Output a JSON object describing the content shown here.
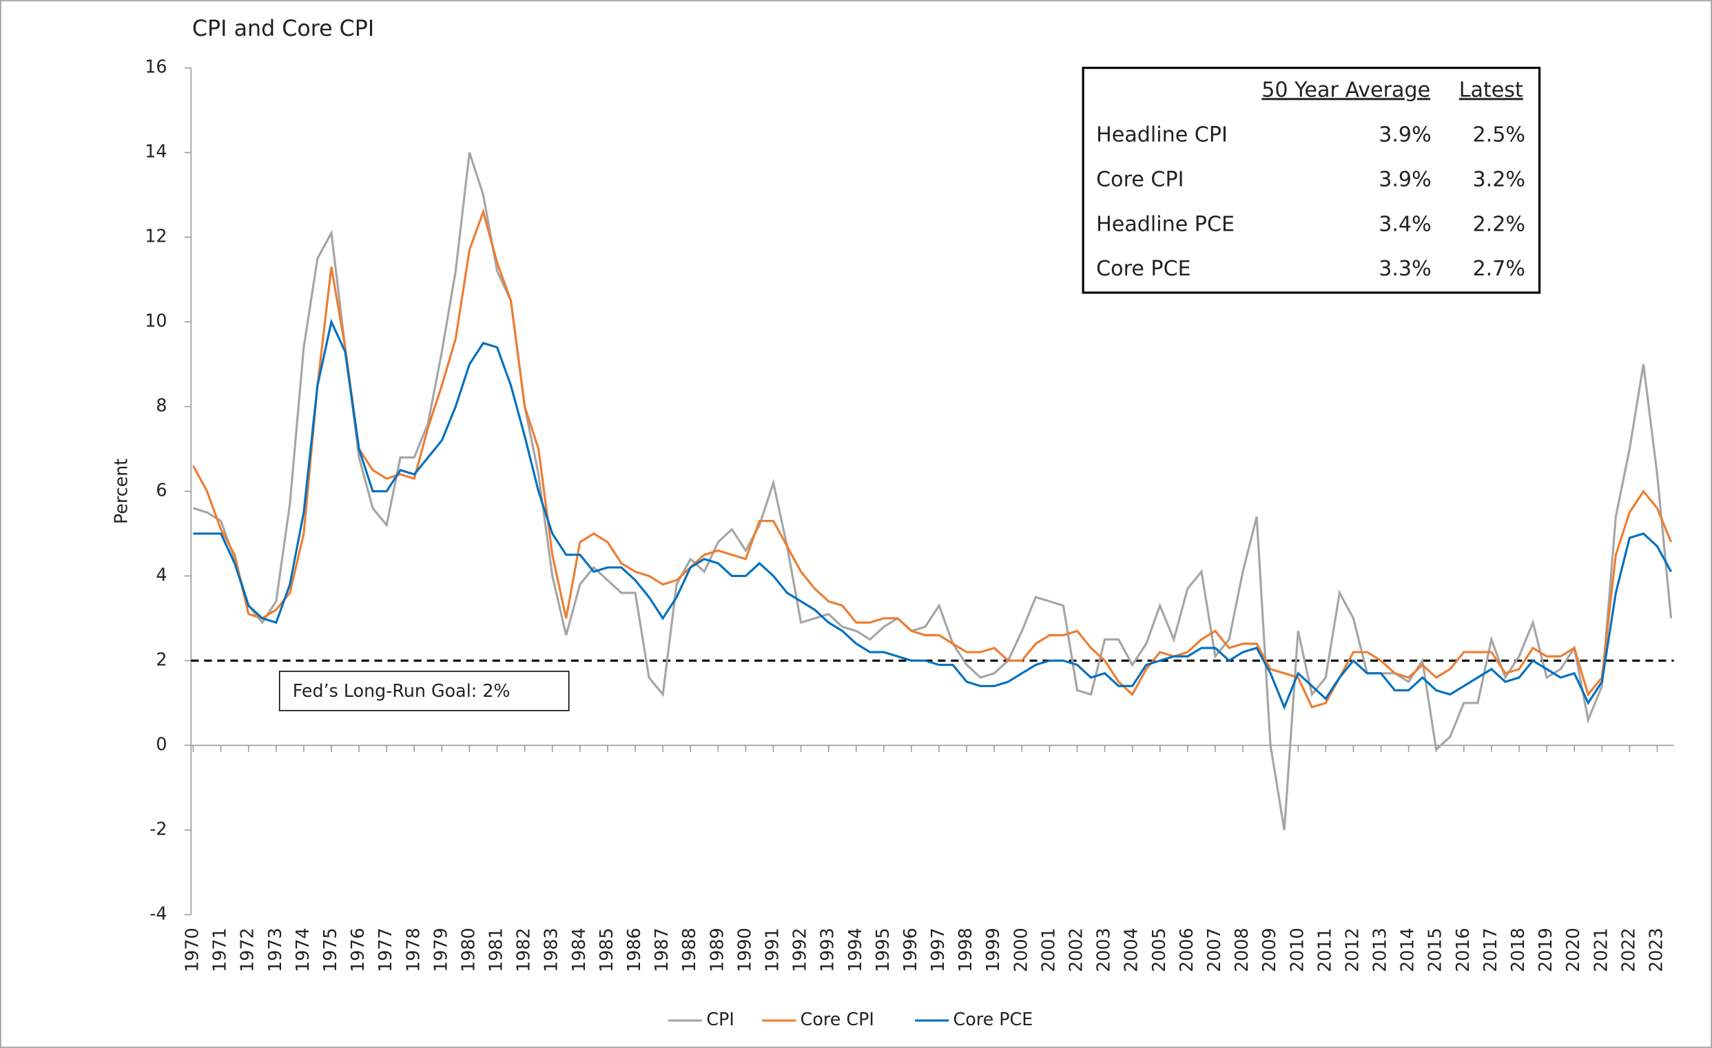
{
  "chart_data": {
    "type": "line",
    "title": "CPI and Core CPI",
    "y_label": "Percent",
    "xlim": [
      1970,
      2023.6
    ],
    "xticks": [
      1970,
      1971,
      1972,
      1973,
      1974,
      1975,
      1976,
      1977,
      1978,
      1979,
      1980,
      1981,
      1982,
      1983,
      1984,
      1985,
      1986,
      1987,
      1988,
      1989,
      1990,
      1991,
      1992,
      1993,
      1994,
      1995,
      1996,
      1997,
      1998,
      1999,
      2000,
      2001,
      2002,
      2003,
      2004,
      2005,
      2006,
      2007,
      2008,
      2009,
      2010,
      2011,
      2012,
      2013,
      2014,
      2015,
      2016,
      2017,
      2018,
      2019,
      2020,
      2021,
      2022,
      2023
    ],
    "ylim": [
      -4,
      16
    ],
    "yticks": [
      -4,
      -2,
      0,
      2,
      4,
      6,
      8,
      10,
      12,
      14,
      16
    ],
    "x": [
      1970,
      1970.5,
      1971,
      1971.5,
      1972,
      1972.5,
      1973,
      1973.5,
      1974,
      1974.5,
      1975,
      1975.5,
      1976,
      1976.5,
      1977,
      1977.5,
      1978,
      1978.5,
      1979,
      1979.5,
      1980,
      1980.5,
      1981,
      1981.5,
      1982,
      1982.5,
      1983,
      1983.5,
      1984,
      1984.5,
      1985,
      1985.5,
      1986,
      1986.5,
      1987,
      1987.5,
      1988,
      1988.5,
      1989,
      1989.5,
      1990,
      1990.5,
      1991,
      1991.5,
      1992,
      1992.5,
      1993,
      1993.5,
      1994,
      1994.5,
      1995,
      1995.5,
      1996,
      1996.5,
      1997,
      1997.5,
      1998,
      1998.5,
      1999,
      1999.5,
      2000,
      2000.5,
      2001,
      2001.5,
      2002,
      2002.5,
      2003,
      2003.5,
      2004,
      2004.5,
      2005,
      2005.5,
      2006,
      2006.5,
      2007,
      2007.5,
      2008,
      2008.5,
      2009,
      2009.5,
      2010,
      2010.5,
      2011,
      2011.5,
      2012,
      2012.5,
      2013,
      2013.5,
      2014,
      2014.5,
      2015,
      2015.5,
      2016,
      2016.5,
      2017,
      2017.5,
      2018,
      2018.5,
      2019,
      2019.5,
      2020,
      2020.5,
      2021,
      2021.5,
      2022,
      2022.5,
      2023,
      2023.5
    ],
    "series": [
      {
        "name": "CPI",
        "color": "#a5a5a5",
        "values": [
          5.6,
          5.5,
          5.3,
          4.4,
          3.3,
          2.9,
          3.4,
          5.7,
          9.4,
          11.5,
          12.1,
          9.4,
          6.8,
          5.6,
          5.2,
          6.8,
          6.8,
          7.6,
          9.3,
          11.2,
          14.0,
          13.0,
          11.2,
          10.5,
          8.0,
          6.4,
          4.0,
          2.6,
          3.8,
          4.2,
          3.9,
          3.6,
          3.6,
          1.6,
          1.2,
          3.8,
          4.4,
          4.1,
          4.8,
          5.1,
          4.6,
          5.2,
          6.2,
          4.7,
          2.9,
          3.0,
          3.1,
          2.8,
          2.7,
          2.5,
          2.8,
          3.0,
          2.7,
          2.8,
          3.3,
          2.4,
          1.9,
          1.6,
          1.7,
          2.0,
          2.7,
          3.5,
          3.4,
          3.3,
          1.3,
          1.2,
          2.5,
          2.5,
          1.9,
          2.4,
          3.3,
          2.5,
          3.7,
          4.1,
          2.1,
          2.5,
          4.1,
          5.4,
          0.0,
          -2.0,
          2.7,
          1.2,
          1.6,
          3.6,
          3.0,
          1.7,
          1.7,
          1.7,
          1.5,
          2.0,
          -0.1,
          0.2,
          1.0,
          1.0,
          2.5,
          1.6,
          2.1,
          2.9,
          1.6,
          1.8,
          2.3,
          0.6,
          1.4,
          5.4,
          7.0,
          9.0,
          6.4,
          3.0
        ]
      },
      {
        "name": "Core CPI",
        "color": "#ed7d31",
        "values": [
          6.6,
          6.0,
          5.1,
          4.5,
          3.1,
          3.0,
          3.2,
          3.6,
          5.0,
          8.5,
          11.3,
          9.4,
          7.0,
          6.5,
          6.3,
          6.4,
          6.3,
          7.5,
          8.5,
          9.6,
          11.7,
          12.6,
          11.4,
          10.5,
          8.0,
          7.0,
          4.5,
          3.0,
          4.8,
          5.0,
          4.8,
          4.3,
          4.1,
          4.0,
          3.8,
          3.9,
          4.2,
          4.5,
          4.6,
          4.5,
          4.4,
          5.3,
          5.3,
          4.7,
          4.1,
          3.7,
          3.4,
          3.3,
          2.9,
          2.9,
          3.0,
          3.0,
          2.7,
          2.6,
          2.6,
          2.4,
          2.2,
          2.2,
          2.3,
          2.0,
          2.0,
          2.4,
          2.6,
          2.6,
          2.7,
          2.3,
          2.0,
          1.5,
          1.2,
          1.8,
          2.2,
          2.1,
          2.2,
          2.5,
          2.7,
          2.3,
          2.4,
          2.4,
          1.8,
          1.7,
          1.6,
          0.9,
          1.0,
          1.6,
          2.2,
          2.2,
          2.0,
          1.7,
          1.6,
          1.9,
          1.6,
          1.8,
          2.2,
          2.2,
          2.2,
          1.7,
          1.8,
          2.3,
          2.1,
          2.1,
          2.3,
          1.2,
          1.6,
          4.5,
          5.5,
          6.0,
          5.6,
          4.8
        ]
      },
      {
        "name": "Core PCE",
        "color": "#0070c0",
        "values": [
          5.0,
          5.0,
          5.0,
          4.3,
          3.3,
          3.0,
          2.9,
          3.8,
          5.5,
          8.5,
          10.0,
          9.3,
          7.0,
          6.0,
          6.0,
          6.5,
          6.4,
          6.8,
          7.2,
          8.0,
          9.0,
          9.5,
          9.4,
          8.5,
          7.3,
          6.0,
          5.0,
          4.5,
          4.5,
          4.1,
          4.2,
          4.2,
          3.9,
          3.5,
          3.0,
          3.5,
          4.2,
          4.4,
          4.3,
          4.0,
          4.0,
          4.3,
          4.0,
          3.6,
          3.4,
          3.2,
          2.9,
          2.7,
          2.4,
          2.2,
          2.2,
          2.1,
          2.0,
          2.0,
          1.9,
          1.9,
          1.5,
          1.4,
          1.4,
          1.5,
          1.7,
          1.9,
          2.0,
          2.0,
          1.9,
          1.6,
          1.7,
          1.4,
          1.4,
          1.9,
          2.0,
          2.1,
          2.1,
          2.3,
          2.3,
          2.0,
          2.2,
          2.3,
          1.7,
          0.9,
          1.7,
          1.4,
          1.1,
          1.6,
          2.0,
          1.7,
          1.7,
          1.3,
          1.3,
          1.6,
          1.3,
          1.2,
          1.4,
          1.6,
          1.8,
          1.5,
          1.6,
          2.0,
          1.8,
          1.6,
          1.7,
          1.0,
          1.5,
          3.6,
          4.9,
          5.0,
          4.7,
          4.1
        ]
      }
    ],
    "goal": {
      "value": 2,
      "label": "Fed’s Long-Run Goal: 2%"
    },
    "table": {
      "header": [
        "50 Year Average",
        "Latest"
      ],
      "rows": [
        [
          "Headline CPI",
          "3.9%",
          "2.5%"
        ],
        [
          "Core CPI",
          "3.9%",
          "3.2%"
        ],
        [
          "Headline PCE",
          "3.4%",
          "2.2%"
        ],
        [
          "Core PCE",
          "3.3%",
          "2.7%"
        ]
      ]
    }
  }
}
